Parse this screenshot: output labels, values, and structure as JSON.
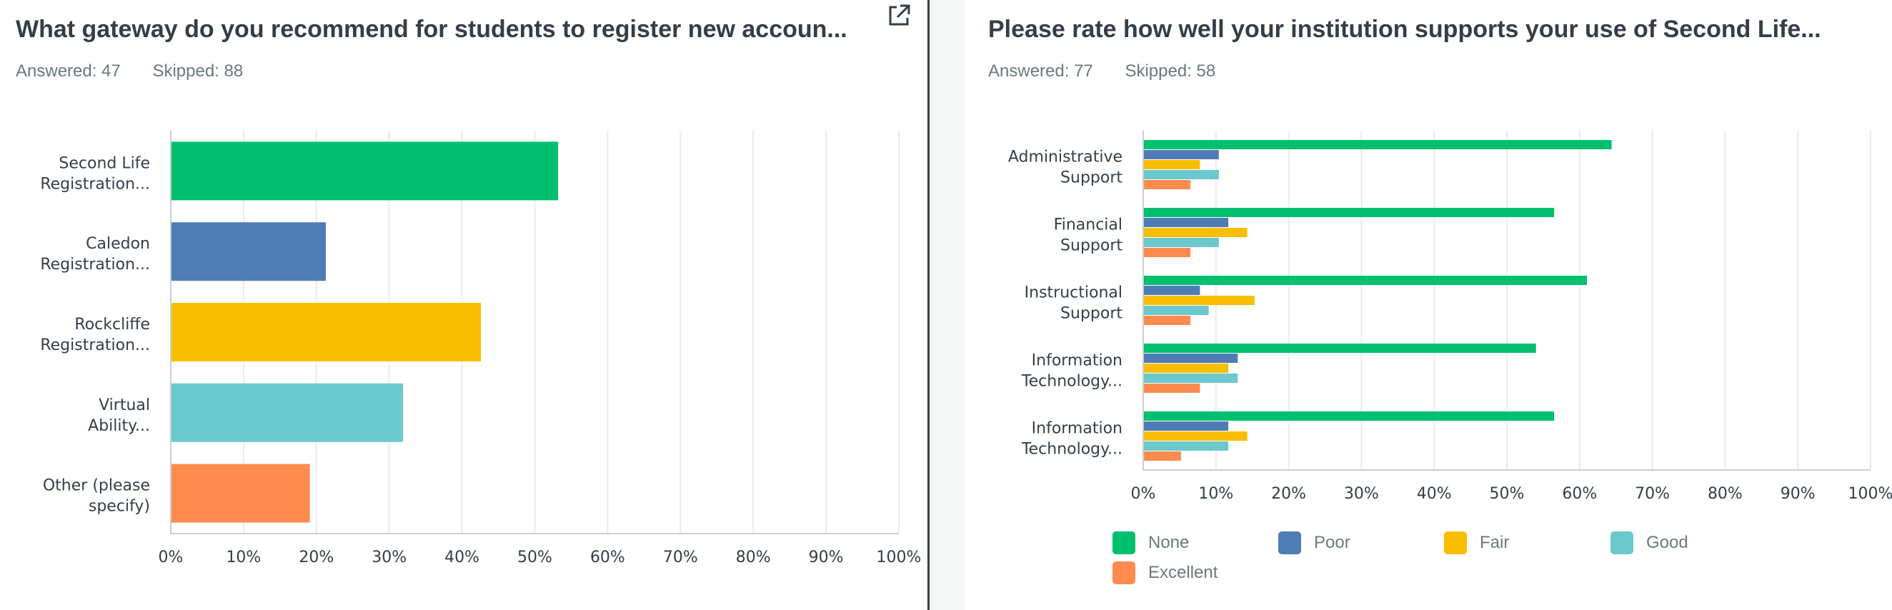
{
  "left": {
    "title": "What gateway do you recommend for students to register new accoun...",
    "answered": "Answered: 47",
    "skipped": "Skipped: 88",
    "share_icon": "external-link-icon"
  },
  "right": {
    "title": "Please rate how well your institution supports your use of Second Life...",
    "answered": "Answered: 77",
    "skipped": "Skipped: 58"
  },
  "chart_data": [
    {
      "type": "bar",
      "orientation": "horizontal",
      "categories": [
        [
          "Second Life",
          "Registration..."
        ],
        [
          "Caledon",
          "Registration..."
        ],
        [
          "Rockcliffe",
          "Registration..."
        ],
        [
          "Virtual",
          "Ability..."
        ],
        [
          "Other (please",
          "specify)"
        ]
      ],
      "values": [
        53.2,
        21.3,
        42.6,
        31.9,
        19.1
      ],
      "colors": [
        "#00bf6f",
        "#507cb6",
        "#f9be00",
        "#6bc8cd",
        "#ff8b4f"
      ],
      "xlim": [
        0,
        100
      ],
      "xticks": [
        "0%",
        "10%",
        "20%",
        "30%",
        "40%",
        "50%",
        "60%",
        "70%",
        "80%",
        "90%",
        "100%"
      ],
      "grid": true
    },
    {
      "type": "bar",
      "orientation": "horizontal",
      "categories": [
        [
          "Administrative",
          "Support"
        ],
        [
          "Financial",
          "Support"
        ],
        [
          "Instructional",
          "Support"
        ],
        [
          "Information",
          "Technology..."
        ],
        [
          "Information",
          "Technology..."
        ]
      ],
      "series": [
        {
          "name": "None",
          "color": "#00bf6f",
          "values": [
            64.4,
            56.5,
            61.0,
            54.0,
            56.5
          ]
        },
        {
          "name": "Poor",
          "color": "#507cb6",
          "values": [
            10.4,
            11.7,
            7.8,
            13.0,
            11.7
          ]
        },
        {
          "name": "Fair",
          "color": "#f9be00",
          "values": [
            7.8,
            14.3,
            15.3,
            11.7,
            14.3
          ]
        },
        {
          "name": "Good",
          "color": "#6bc8cd",
          "values": [
            10.4,
            10.4,
            9.0,
            13.0,
            11.7
          ]
        },
        {
          "name": "Excellent",
          "color": "#ff8b4f",
          "values": [
            6.5,
            6.5,
            6.5,
            7.8,
            5.2
          ]
        }
      ],
      "xlim": [
        0,
        100
      ],
      "xticks": [
        "0%",
        "10%",
        "20%",
        "30%",
        "40%",
        "50%",
        "60%",
        "70%",
        "80%",
        "90%",
        "100%"
      ],
      "grid": true,
      "legend_position": "bottom"
    }
  ]
}
